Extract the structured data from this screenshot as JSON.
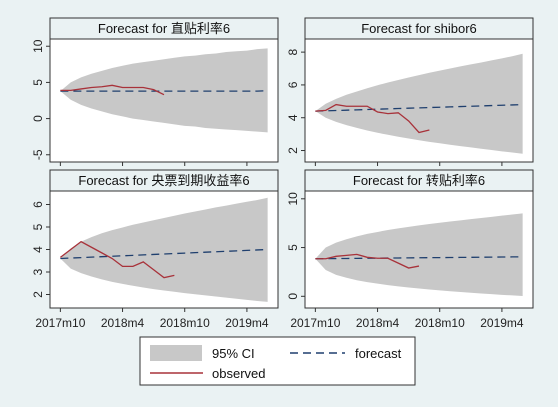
{
  "figure": {
    "legend": {
      "ci_label": "95% CI",
      "forecast_label": "forecast",
      "observed_label": "observed"
    }
  },
  "colors": {
    "background": "#eaf2f3",
    "panel_bg": "#ffffff",
    "ci_band": "#c8c8c8",
    "forecast_line": "#1f3f6e",
    "observed_line": "#a8323a"
  },
  "chart_data": [
    {
      "type": "line",
      "title": "Forecast for 直贴利率6",
      "x_start": "2017m10",
      "x_ticks": [
        "2017m10",
        "2018m4",
        "2018m10",
        "2019m4"
      ],
      "x_tick_months": [
        0,
        6,
        12,
        18
      ],
      "xlim": [
        -1,
        21
      ],
      "ylim": [
        -6,
        11
      ],
      "y_ticks": [
        -5,
        0,
        5,
        10
      ],
      "forecast": [
        3.8,
        3.8,
        3.8,
        3.8,
        3.8,
        3.8,
        3.8,
        3.8,
        3.8,
        3.8,
        3.8,
        3.8,
        3.8,
        3.8,
        3.8,
        3.8,
        3.8,
        3.8,
        3.8,
        3.8,
        3.85
      ],
      "ci_lower": [
        3.8,
        2.6,
        1.9,
        1.4,
        1.0,
        0.6,
        0.3,
        0.0,
        -0.2,
        -0.4,
        -0.6,
        -0.8,
        -1.0,
        -1.1,
        -1.3,
        -1.4,
        -1.5,
        -1.6,
        -1.7,
        -1.8,
        -1.9
      ],
      "ci_upper": [
        3.8,
        5.0,
        5.7,
        6.2,
        6.6,
        7.0,
        7.3,
        7.6,
        7.8,
        8.0,
        8.2,
        8.4,
        8.6,
        8.7,
        8.9,
        9.0,
        9.2,
        9.3,
        9.4,
        9.6,
        9.7
      ],
      "observed": [
        3.9,
        3.9,
        4.1,
        4.3,
        4.4,
        4.6,
        4.3,
        4.3,
        4.3,
        4.0,
        3.3
      ]
    },
    {
      "type": "line",
      "title": "Forecast for shibor6",
      "x_start": "2017m10",
      "x_ticks": [
        "2017m10",
        "2018m4",
        "2018m10",
        "2019m4"
      ],
      "x_tick_months": [
        0,
        6,
        12,
        18
      ],
      "xlim": [
        -1,
        21
      ],
      "ylim": [
        1.3,
        8.8
      ],
      "y_ticks": [
        2,
        4,
        6,
        8
      ],
      "forecast": [
        4.4,
        4.42,
        4.44,
        4.46,
        4.48,
        4.5,
        4.52,
        4.54,
        4.56,
        4.58,
        4.6,
        4.62,
        4.64,
        4.66,
        4.68,
        4.7,
        4.72,
        4.74,
        4.76,
        4.78,
        4.8
      ],
      "ci_lower": [
        4.4,
        4.0,
        3.75,
        3.55,
        3.38,
        3.22,
        3.08,
        2.96,
        2.84,
        2.73,
        2.63,
        2.53,
        2.44,
        2.35,
        2.27,
        2.19,
        2.11,
        2.03,
        1.95,
        1.88,
        1.8
      ],
      "ci_upper": [
        4.4,
        4.85,
        5.15,
        5.4,
        5.6,
        5.8,
        5.98,
        6.15,
        6.3,
        6.45,
        6.6,
        6.74,
        6.87,
        7.0,
        7.13,
        7.25,
        7.37,
        7.5,
        7.62,
        7.75,
        7.9
      ],
      "observed": [
        4.4,
        4.45,
        4.8,
        4.7,
        4.7,
        4.7,
        4.35,
        4.25,
        4.3,
        3.8,
        3.1,
        3.25
      ]
    },
    {
      "type": "line",
      "title": "Forecast for 央票到期收益率6",
      "x_start": "2017m10",
      "x_ticks": [
        "2017m10",
        "2018m4",
        "2018m10",
        "2019m4"
      ],
      "x_tick_months": [
        0,
        6,
        12,
        18
      ],
      "xlim": [
        -1,
        21
      ],
      "ylim": [
        1.4,
        6.6
      ],
      "y_ticks": [
        2,
        3,
        4,
        5,
        6
      ],
      "forecast": [
        3.6,
        3.62,
        3.64,
        3.66,
        3.68,
        3.7,
        3.72,
        3.74,
        3.76,
        3.78,
        3.8,
        3.82,
        3.84,
        3.86,
        3.88,
        3.9,
        3.92,
        3.94,
        3.96,
        3.98,
        4.0
      ],
      "ci_lower": [
        3.6,
        3.15,
        2.95,
        2.8,
        2.67,
        2.56,
        2.47,
        2.39,
        2.31,
        2.24,
        2.18,
        2.12,
        2.06,
        2.01,
        1.96,
        1.91,
        1.86,
        1.81,
        1.76,
        1.71,
        1.67
      ],
      "ci_upper": [
        3.6,
        4.05,
        4.35,
        4.55,
        4.72,
        4.86,
        4.98,
        5.1,
        5.2,
        5.3,
        5.4,
        5.5,
        5.6,
        5.69,
        5.78,
        5.87,
        5.95,
        6.04,
        6.12,
        6.2,
        6.3
      ],
      "observed": [
        3.65,
        4.0,
        4.35,
        4.1,
        3.85,
        3.6,
        3.25,
        3.25,
        3.45,
        3.1,
        2.75,
        2.85
      ]
    },
    {
      "type": "line",
      "title": "Forecast for 转贴利率6",
      "x_start": "2017m10",
      "x_ticks": [
        "2017m10",
        "2018m4",
        "2018m10",
        "2019m4"
      ],
      "x_tick_months": [
        0,
        6,
        12,
        18
      ],
      "xlim": [
        -1,
        21
      ],
      "ylim": [
        -1.2,
        10.8
      ],
      "y_ticks": [
        0,
        5,
        10
      ],
      "forecast": [
        3.85,
        3.86,
        3.87,
        3.88,
        3.89,
        3.9,
        3.91,
        3.92,
        3.93,
        3.94,
        3.95,
        3.96,
        3.97,
        3.98,
        3.99,
        4.0,
        4.01,
        4.02,
        4.03,
        4.04,
        4.05
      ],
      "ci_lower": [
        3.85,
        2.7,
        2.2,
        1.9,
        1.65,
        1.45,
        1.3,
        1.15,
        1.02,
        0.9,
        0.8,
        0.7,
        0.61,
        0.52,
        0.44,
        0.36,
        0.29,
        0.22,
        0.15,
        0.09,
        0.03
      ],
      "ci_upper": [
        3.85,
        5.0,
        5.5,
        5.85,
        6.15,
        6.4,
        6.6,
        6.8,
        6.97,
        7.12,
        7.27,
        7.41,
        7.54,
        7.67,
        7.79,
        7.91,
        8.03,
        8.15,
        8.27,
        8.39,
        8.5
      ],
      "observed": [
        3.85,
        3.85,
        4.1,
        4.2,
        4.3,
        4.0,
        3.9,
        3.9,
        3.4,
        2.9,
        3.1
      ]
    }
  ]
}
